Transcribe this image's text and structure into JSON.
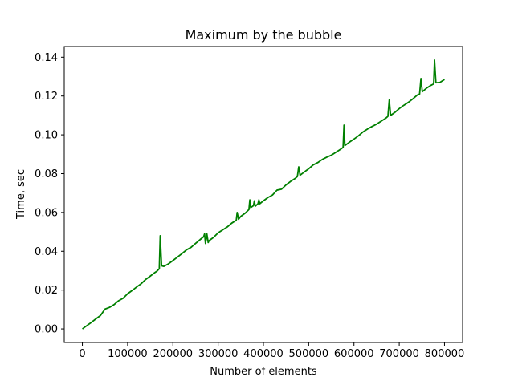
{
  "chart_data": {
    "type": "line",
    "title": "Maximum by the bubble",
    "xlabel": "Number of elements",
    "ylabel": "Time, sec",
    "xlim": [
      -40000,
      840000
    ],
    "ylim": [
      -0.007,
      0.1455
    ],
    "x_ticks": [
      0,
      100000,
      200000,
      300000,
      400000,
      500000,
      600000,
      700000,
      800000
    ],
    "x_tick_labels": [
      "0",
      "100000",
      "200000",
      "300000",
      "400000",
      "500000",
      "600000",
      "700000",
      "800000"
    ],
    "y_ticks": [
      0.0,
      0.02,
      0.04,
      0.06,
      0.08,
      0.1,
      0.12,
      0.14
    ],
    "y_tick_labels": [
      "0.00",
      "0.02",
      "0.04",
      "0.06",
      "0.08",
      "0.10",
      "0.12",
      "0.14"
    ],
    "grid": false,
    "legend": "none",
    "series": [
      {
        "color": "#008000",
        "x": [
          0,
          10000,
          20000,
          30000,
          40000,
          50000,
          60000,
          70000,
          80000,
          90000,
          100000,
          110000,
          120000,
          130000,
          140000,
          150000,
          160000,
          165000,
          170000,
          172000,
          175000,
          180000,
          190000,
          200000,
          210000,
          220000,
          230000,
          240000,
          250000,
          260000,
          268000,
          270000,
          272000,
          275000,
          278000,
          280000,
          290000,
          300000,
          310000,
          320000,
          330000,
          340000,
          342000,
          345000,
          350000,
          360000,
          368000,
          370000,
          372000,
          378000,
          380000,
          382000,
          388000,
          390000,
          392000,
          400000,
          410000,
          420000,
          430000,
          440000,
          450000,
          460000,
          470000,
          475000,
          478000,
          481000,
          490000,
          500000,
          510000,
          520000,
          530000,
          540000,
          550000,
          560000,
          570000,
          576000,
          578000,
          580000,
          590000,
          600000,
          610000,
          620000,
          630000,
          640000,
          650000,
          660000,
          670000,
          675000,
          678000,
          681000,
          690000,
          700000,
          710000,
          720000,
          730000,
          740000,
          745000,
          748000,
          751000,
          760000,
          770000,
          776000,
          778000,
          781000,
          790000,
          800000
        ],
        "y": [
          0.0,
          0.0017,
          0.0034,
          0.0052,
          0.0069,
          0.0102,
          0.0111,
          0.0125,
          0.0145,
          0.0158,
          0.0181,
          0.0198,
          0.0216,
          0.0233,
          0.0255,
          0.0272,
          0.029,
          0.0298,
          0.031,
          0.048,
          0.0325,
          0.0322,
          0.0335,
          0.0352,
          0.037,
          0.0388,
          0.0407,
          0.042,
          0.044,
          0.046,
          0.0475,
          0.049,
          0.044,
          0.049,
          0.0445,
          0.0455,
          0.0472,
          0.0495,
          0.051,
          0.0525,
          0.0545,
          0.056,
          0.06,
          0.0565,
          0.058,
          0.0597,
          0.0615,
          0.0665,
          0.0625,
          0.0635,
          0.066,
          0.0632,
          0.0645,
          0.0665,
          0.0645,
          0.066,
          0.0677,
          0.069,
          0.0715,
          0.072,
          0.0742,
          0.076,
          0.0775,
          0.0785,
          0.0835,
          0.0792,
          0.0808,
          0.0825,
          0.0845,
          0.0857,
          0.0873,
          0.0885,
          0.0895,
          0.091,
          0.0925,
          0.0935,
          0.105,
          0.0945,
          0.0962,
          0.0978,
          0.0995,
          0.1015,
          0.103,
          0.1043,
          0.1055,
          0.107,
          0.1085,
          0.1095,
          0.118,
          0.11,
          0.1115,
          0.1135,
          0.1152,
          0.1167,
          0.1185,
          0.1205,
          0.121,
          0.129,
          0.1222,
          0.124,
          0.1255,
          0.1262,
          0.1385,
          0.1268,
          0.127,
          0.1285
        ]
      }
    ]
  }
}
